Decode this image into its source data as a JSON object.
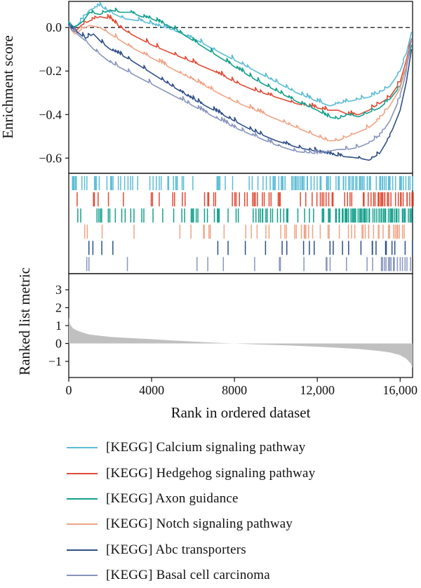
{
  "chart_data": {
    "type": "line",
    "subtype": "gsea-enrichment-plot",
    "xlabel": "Rank in ordered dataset",
    "xlim": [
      0,
      16600
    ],
    "xticks": [
      0,
      4000,
      8000,
      12000,
      16000
    ],
    "xtick_labels": [
      "0",
      "4000",
      "8000",
      "12,000",
      "16,000"
    ],
    "top_panel": {
      "ylabel": "Enrichment score",
      "ylim": [
        -0.67,
        0.12
      ],
      "yticks": [
        0.0,
        -0.2,
        -0.4,
        -0.6
      ],
      "ytick_labels": [
        "0.0",
        "−0.2",
        "−0.4",
        "−0.6"
      ],
      "zero_line": "dashed"
    },
    "series": [
      {
        "name": "[KEGG] Calcium signaling pathway",
        "color": "#5bbcd6",
        "x": [
          0,
          300,
          700,
          1000,
          1500,
          2000,
          2700,
          3500,
          4200,
          5000,
          6000,
          7000,
          8000,
          9000,
          10000,
          11000,
          12000,
          12600,
          13000,
          13500,
          14000,
          14500,
          15000,
          15500,
          16000,
          16300,
          16550
        ],
        "y": [
          0.01,
          0.0,
          0.04,
          0.08,
          0.1,
          0.07,
          0.04,
          0.03,
          0.01,
          -0.01,
          -0.05,
          -0.1,
          -0.15,
          -0.2,
          -0.25,
          -0.3,
          -0.34,
          -0.36,
          -0.35,
          -0.34,
          -0.33,
          -0.32,
          -0.3,
          -0.27,
          -0.2,
          -0.12,
          -0.02
        ]
      },
      {
        "name": "[KEGG] Hedgehog signaling pathway",
        "color": "#e04b35",
        "x": [
          0,
          300,
          600,
          1000,
          1500,
          2000,
          2500,
          3000,
          4000,
          5000,
          6000,
          7000,
          8000,
          9000,
          10000,
          11000,
          12000,
          12500,
          13000,
          13500,
          14000,
          14500,
          15000,
          15500,
          16000,
          16300,
          16550
        ],
        "y": [
          0.0,
          -0.02,
          0.01,
          0.03,
          0.05,
          0.04,
          0.0,
          -0.03,
          -0.08,
          -0.12,
          -0.16,
          -0.2,
          -0.25,
          -0.29,
          -0.32,
          -0.35,
          -0.37,
          -0.38,
          -0.38,
          -0.4,
          -0.4,
          -0.38,
          -0.35,
          -0.32,
          -0.25,
          -0.15,
          -0.05
        ]
      },
      {
        "name": "[KEGG] Axon guidance",
        "color": "#13a08c",
        "x": [
          0,
          300,
          700,
          1000,
          1500,
          2000,
          2500,
          3000,
          3500,
          4000,
          5000,
          6000,
          7000,
          8000,
          9000,
          10000,
          11000,
          12000,
          12500,
          13000,
          13500,
          14000,
          14500,
          15000,
          15500,
          16000,
          16300,
          16550
        ],
        "y": [
          0.02,
          0.0,
          0.03,
          0.07,
          0.06,
          0.08,
          0.07,
          0.07,
          0.05,
          0.04,
          0.0,
          -0.06,
          -0.12,
          -0.18,
          -0.24,
          -0.29,
          -0.34,
          -0.38,
          -0.41,
          -0.42,
          -0.4,
          -0.41,
          -0.39,
          -0.37,
          -0.33,
          -0.27,
          -0.18,
          -0.08
        ]
      },
      {
        "name": "[KEGG] Notch signaling pathway",
        "color": "#f0a385",
        "x": [
          0,
          300,
          600,
          1000,
          1500,
          2000,
          3000,
          4000,
          5000,
          6000,
          7000,
          8000,
          9000,
          10000,
          11000,
          12000,
          12500,
          13000,
          13500,
          14000,
          14500,
          15000,
          15500,
          16000,
          16300,
          16550
        ],
        "y": [
          0.0,
          -0.03,
          -0.01,
          0.01,
          0.0,
          -0.03,
          -0.09,
          -0.14,
          -0.19,
          -0.24,
          -0.29,
          -0.34,
          -0.38,
          -0.42,
          -0.46,
          -0.5,
          -0.52,
          -0.52,
          -0.5,
          -0.48,
          -0.46,
          -0.42,
          -0.36,
          -0.28,
          -0.18,
          -0.05
        ]
      },
      {
        "name": "[KEGG] Abc transporters",
        "color": "#2f4f88",
        "x": [
          0,
          400,
          800,
          1200,
          1600,
          2000,
          3000,
          4000,
          5000,
          6000,
          7000,
          8000,
          9000,
          10000,
          11000,
          12000,
          13000,
          14000,
          14500,
          15000,
          15500,
          16000,
          16300,
          16550
        ],
        "y": [
          0.0,
          -0.02,
          -0.05,
          -0.03,
          -0.07,
          -0.1,
          -0.15,
          -0.21,
          -0.27,
          -0.33,
          -0.38,
          -0.43,
          -0.48,
          -0.52,
          -0.55,
          -0.57,
          -0.59,
          -0.6,
          -0.61,
          -0.58,
          -0.5,
          -0.38,
          -0.25,
          -0.1
        ]
      },
      {
        "name": "[KEGG] Basal cell carcinoma",
        "color": "#8895bd",
        "x": [
          0,
          400,
          800,
          1200,
          1600,
          2000,
          3000,
          4000,
          5000,
          6000,
          7000,
          8000,
          9000,
          10000,
          11000,
          12000,
          12500,
          13000,
          13500,
          14000,
          14500,
          15000,
          15500,
          16000,
          16300,
          16550
        ],
        "y": [
          0.0,
          -0.03,
          -0.06,
          -0.1,
          -0.13,
          -0.16,
          -0.21,
          -0.26,
          -0.31,
          -0.36,
          -0.41,
          -0.46,
          -0.5,
          -0.54,
          -0.57,
          -0.58,
          -0.57,
          -0.56,
          -0.56,
          -0.55,
          -0.53,
          -0.5,
          -0.43,
          -0.32,
          -0.2,
          -0.05
        ]
      }
    ],
    "hits_panel": {
      "description": "rug of gene hit positions per gene set, same order as series"
    },
    "bottom_panel": {
      "ylabel": "Ranked list metric",
      "ylim": [
        -1.9,
        3.9
      ],
      "yticks": [
        -1,
        0,
        1,
        2,
        3
      ],
      "ytick_labels": [
        "−1",
        "0",
        "1",
        "2",
        "3"
      ],
      "fill_color": "#c0c0c0",
      "x": [
        0,
        30,
        100,
        200,
        400,
        700,
        1000,
        1500,
        2000,
        3000,
        4000,
        5000,
        6000,
        7000,
        7500,
        8000,
        9000,
        10000,
        11000,
        12000,
        13000,
        14000,
        15000,
        15500,
        16000,
        16300,
        16500,
        16600
      ],
      "y": [
        1.5,
        1.2,
        1.0,
        0.85,
        0.72,
        0.6,
        0.5,
        0.43,
        0.37,
        0.3,
        0.24,
        0.17,
        0.11,
        0.05,
        0.02,
        0.0,
        -0.05,
        -0.09,
        -0.13,
        -0.18,
        -0.24,
        -0.31,
        -0.42,
        -0.5,
        -0.65,
        -0.85,
        -1.1,
        -1.35
      ]
    },
    "legend_position": "bottom"
  }
}
